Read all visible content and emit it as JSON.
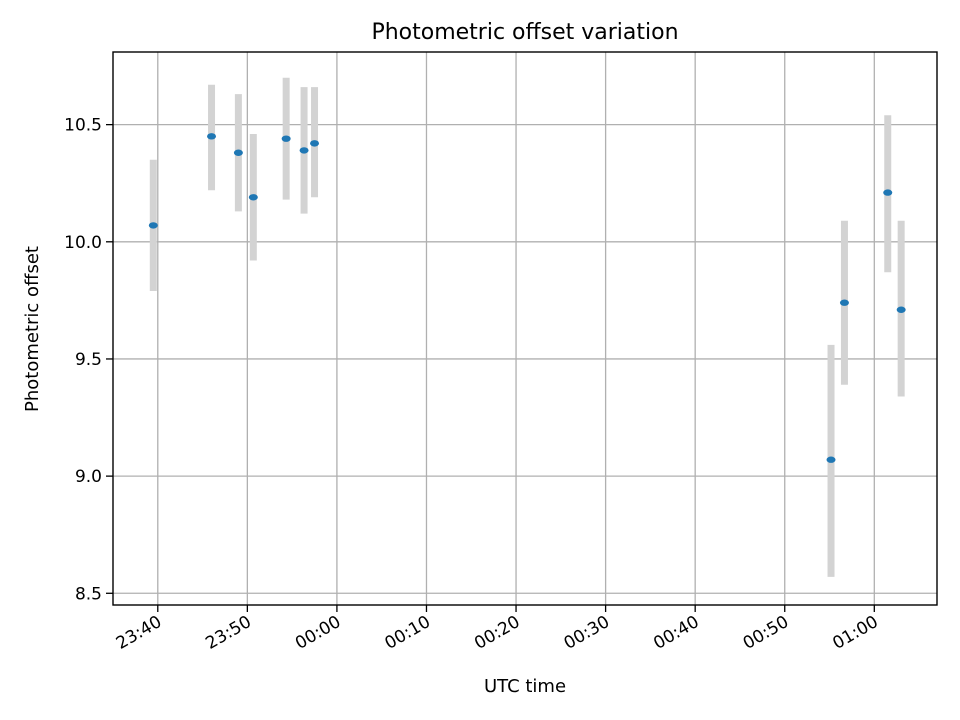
{
  "chart_data": {
    "type": "scatter",
    "title": "Photometric offset variation",
    "xlabel": "UTC time",
    "ylabel": "Photometric offset",
    "x_tick_labels": [
      "23:40",
      "23:50",
      "00:00",
      "00:10",
      "00:20",
      "00:30",
      "00:40",
      "00:50",
      "01:00"
    ],
    "y_tick_labels": [
      "8.5",
      "9.0",
      "9.5",
      "10.0",
      "10.5"
    ],
    "y_ticks": [
      8.5,
      9.0,
      9.5,
      10.0,
      10.5
    ],
    "ylim": [
      8.45,
      10.81
    ],
    "xlim": [
      "23:35:00",
      "01:07:00"
    ],
    "grid": true,
    "marker_color": "#1f77b4",
    "errorbar_color": "#d3d3d3",
    "points": [
      {
        "x": "23:39:30",
        "y": 10.07,
        "err_low": 9.79,
        "err_high": 10.35
      },
      {
        "x": "23:46:00",
        "y": 10.45,
        "err_low": 10.22,
        "err_high": 10.67
      },
      {
        "x": "23:49:00",
        "y": 10.38,
        "err_low": 10.13,
        "err_high": 10.63
      },
      {
        "x": "23:50:40",
        "y": 10.19,
        "err_low": 9.92,
        "err_high": 10.46
      },
      {
        "x": "23:54:20",
        "y": 10.44,
        "err_low": 10.18,
        "err_high": 10.7
      },
      {
        "x": "23:56:20",
        "y": 10.39,
        "err_low": 10.12,
        "err_high": 10.66
      },
      {
        "x": "23:57:30",
        "y": 10.42,
        "err_low": 10.19,
        "err_high": 10.66
      },
      {
        "x": "00:55:10",
        "y": 9.07,
        "err_low": 8.57,
        "err_high": 9.56
      },
      {
        "x": "00:56:40",
        "y": 9.74,
        "err_low": 9.39,
        "err_high": 10.09
      },
      {
        "x": "01:01:30",
        "y": 10.21,
        "err_low": 9.87,
        "err_high": 10.54
      },
      {
        "x": "01:03:00",
        "y": 9.71,
        "err_low": 9.34,
        "err_high": 10.09
      }
    ]
  }
}
